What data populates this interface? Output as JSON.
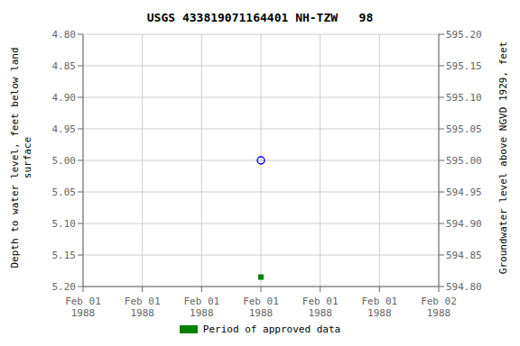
{
  "chart_data": {
    "type": "scatter",
    "title": "USGS 433819071164401 NH-TZW   98",
    "ylabel": "Depth to water level, feet below land\nsurface",
    "y2label": "Groundwater level above NGVD 1929, feet",
    "categories": [
      "Feb 01\n1988",
      "Feb 01\n1988",
      "Feb 01\n1988",
      "Feb 01\n1988",
      "Feb 01\n1988",
      "Feb 01\n1988",
      "Feb 02\n1988"
    ],
    "series": [
      {
        "color": "blue",
        "marker": "open_circle",
        "values": [
          null,
          null,
          null,
          5.0,
          null,
          null,
          null
        ]
      },
      {
        "name": "Period of approved data",
        "color": "#008000",
        "marker": "square",
        "values": [
          null,
          null,
          null,
          5.185,
          null,
          null,
          null
        ]
      }
    ],
    "ylim": [
      5.2,
      4.8
    ],
    "yticks": [
      {
        "value": 4.8,
        "label": "4.80"
      },
      4.85,
      {
        "value": 4.9,
        "label": "4.90"
      },
      4.95,
      {
        "value": 5.0,
        "label": "5.00"
      },
      5.05,
      {
        "value": 5.1,
        "label": "5.10"
      },
      5.15,
      {
        "value": 5.2,
        "label": "5.20"
      }
    ],
    "y2lim": [
      594.8,
      595.2
    ],
    "y2ticks": [
      {
        "value": 595.2,
        "label": "595.20"
      },
      595.15,
      {
        "value": 595.1,
        "label": "595.10"
      },
      595.05,
      {
        "value": 595.0,
        "label": "595.00"
      },
      594.95,
      {
        "value": 594.9,
        "label": "594.90"
      },
      594.85,
      {
        "value": 594.8,
        "label": "594.80"
      }
    ],
    "grid": true,
    "legend": "bottom"
  }
}
